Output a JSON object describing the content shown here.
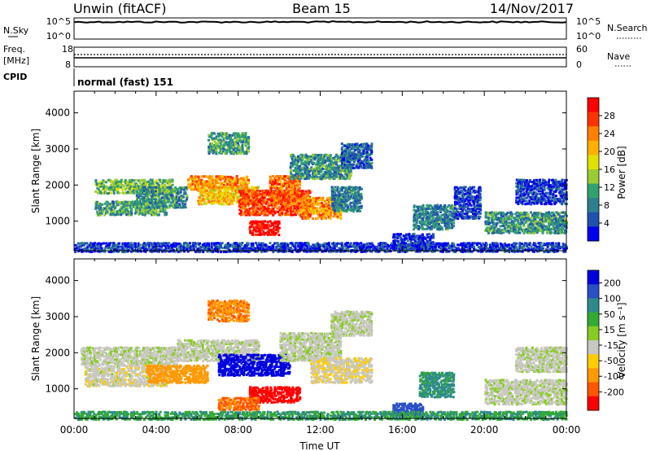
{
  "header": {
    "station": "Unwin (fitACF)",
    "beam": "Beam 15",
    "date": "14/Nov/2017"
  },
  "status_panels": {
    "nsky_label": "N.Sky",
    "nsky_ticks": [
      "10^5",
      "10^0"
    ],
    "nsearch_label": "N.Search",
    "nsearch_ticks": [
      "10^5",
      "10^0"
    ],
    "freq_label": "Freq.",
    "freq_unit": "[MHz]",
    "freq_ticks": [
      "18",
      "8"
    ],
    "nave_label": "Nave",
    "nave_ticks": [
      "60",
      "0"
    ],
    "cpid_label": "CPID",
    "cpid_value": "normal (fast) 151"
  },
  "chart_data": [
    {
      "type": "heatmap",
      "name": "power-rti",
      "ylabel": "Slant Range [km]",
      "xlabel": "",
      "yticks": [
        "1000",
        "2000",
        "3000",
        "4000"
      ],
      "ylim": [
        180,
        4600
      ],
      "colorbar": {
        "label": "Power [dB]",
        "ticks": [
          "28",
          "24",
          "20",
          "16",
          "12",
          "8",
          "4"
        ],
        "colors": [
          "#ff0000",
          "#ff3300",
          "#ff8000",
          "#ffb000",
          "#e0e000",
          "#99cc33",
          "#33a070",
          "#2e7f8f",
          "#2050b0",
          "#0000ee"
        ]
      },
      "echo_regions": [
        {
          "t": [
            1.0,
            4.8
          ],
          "r": [
            1800,
            2200
          ],
          "v": 14
        },
        {
          "t": [
            1.0,
            4.5
          ],
          "r": [
            1200,
            1600
          ],
          "v": 12
        },
        {
          "t": [
            3.0,
            5.5
          ],
          "r": [
            1400,
            2000
          ],
          "v": 11
        },
        {
          "t": [
            5.5,
            8.5
          ],
          "r": [
            1900,
            2300
          ],
          "v": 22
        },
        {
          "t": [
            6.0,
            9.0
          ],
          "r": [
            1500,
            2000
          ],
          "v": 20
        },
        {
          "t": [
            8.0,
            11.5
          ],
          "r": [
            1200,
            1900
          ],
          "v": 26
        },
        {
          "t": [
            8.5,
            10.0
          ],
          "r": [
            650,
            1050
          ],
          "v": 29
        },
        {
          "t": [
            9.5,
            11.0
          ],
          "r": [
            1500,
            2300
          ],
          "v": 24
        },
        {
          "t": [
            11.0,
            13.0
          ],
          "r": [
            1100,
            1700
          ],
          "v": 22
        },
        {
          "t": [
            6.5,
            8.5
          ],
          "r": [
            2900,
            3500
          ],
          "v": 12
        },
        {
          "t": [
            10.5,
            13.5
          ],
          "r": [
            2200,
            2900
          ],
          "v": 11
        },
        {
          "t": [
            13.0,
            14.5
          ],
          "r": [
            2500,
            3200
          ],
          "v": 8
        },
        {
          "t": [
            12.5,
            14.0
          ],
          "r": [
            1300,
            2000
          ],
          "v": 10
        },
        {
          "t": [
            16.5,
            18.5
          ],
          "r": [
            800,
            1500
          ],
          "v": 10
        },
        {
          "t": [
            18.5,
            19.8
          ],
          "r": [
            1100,
            2000
          ],
          "v": 6
        },
        {
          "t": [
            20.0,
            24.0
          ],
          "r": [
            700,
            1300
          ],
          "v": 11
        },
        {
          "t": [
            21.5,
            24.0
          ],
          "r": [
            1500,
            2200
          ],
          "v": 6
        },
        {
          "t": [
            15.5,
            17.5
          ],
          "r": [
            250,
            700
          ],
          "v": 5
        },
        {
          "t": [
            0.0,
            24.0
          ],
          "r": [
            180,
            450
          ],
          "v": 6
        }
      ]
    },
    {
      "type": "heatmap",
      "name": "velocity-rti",
      "ylabel": "Slant Range [km]",
      "xlabel": "Time UT",
      "xticks": [
        "00:00",
        "04:00",
        "08:00",
        "12:00",
        "16:00",
        "20:00",
        "00:00"
      ],
      "yticks": [
        "1000",
        "2000",
        "3000",
        "4000"
      ],
      "ylim": [
        180,
        4600
      ],
      "colorbar": {
        "label": "Velocity [m s⁻¹]",
        "ticks": [
          "200",
          "100",
          "50",
          "15",
          "-15",
          "-50",
          "-100",
          "-200"
        ],
        "colors": [
          "#0000dd",
          "#2b4fc4",
          "#2e8a8a",
          "#33aa33",
          "#88cc22",
          "#c8c8c0",
          "#ffcc00",
          "#ff9900",
          "#ff5500",
          "#ff0000"
        ]
      },
      "echo_regions": [
        {
          "t": [
            0.3,
            5.0
          ],
          "r": [
            1700,
            2200
          ],
          "v": 0
        },
        {
          "t": [
            0.5,
            4.5
          ],
          "r": [
            1100,
            1700
          ],
          "v": -5
        },
        {
          "t": [
            3.5,
            6.5
          ],
          "r": [
            1200,
            1700
          ],
          "v": -60
        },
        {
          "t": [
            5.0,
            9.0
          ],
          "r": [
            1800,
            2400
          ],
          "v": 0
        },
        {
          "t": [
            7.0,
            10.5
          ],
          "r": [
            1400,
            2000
          ],
          "v": 180
        },
        {
          "t": [
            8.5,
            11.0
          ],
          "r": [
            650,
            1100
          ],
          "v": -200
        },
        {
          "t": [
            7.0,
            9.0
          ],
          "r": [
            450,
            800
          ],
          "v": -80
        },
        {
          "t": [
            10.0,
            13.0
          ],
          "r": [
            1800,
            2600
          ],
          "v": 0
        },
        {
          "t": [
            11.5,
            14.5
          ],
          "r": [
            1200,
            1900
          ],
          "v": -10
        },
        {
          "t": [
            6.5,
            8.5
          ],
          "r": [
            2900,
            3500
          ],
          "v": -70
        },
        {
          "t": [
            12.5,
            14.5
          ],
          "r": [
            2500,
            3200
          ],
          "v": 0
        },
        {
          "t": [
            16.8,
            18.5
          ],
          "r": [
            800,
            1500
          ],
          "v": 40
        },
        {
          "t": [
            20.0,
            24.0
          ],
          "r": [
            600,
            1300
          ],
          "v": 0
        },
        {
          "t": [
            21.5,
            24.0
          ],
          "r": [
            1500,
            2200
          ],
          "v": 0
        },
        {
          "t": [
            15.5,
            17.0
          ],
          "r": [
            300,
            650
          ],
          "v": 120
        },
        {
          "t": [
            0.0,
            24.0
          ],
          "r": [
            180,
            420
          ],
          "v": 30
        }
      ]
    }
  ]
}
